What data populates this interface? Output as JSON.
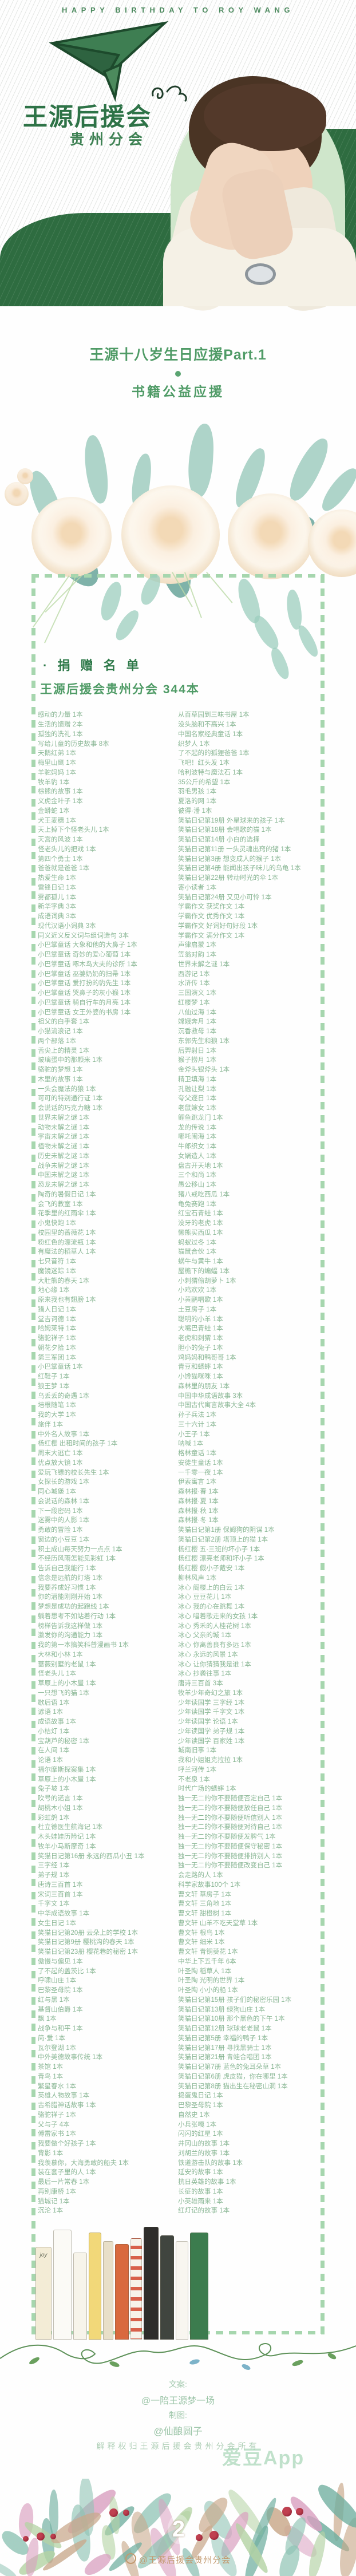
{
  "page": {
    "header": {
      "top_line": "HAPPY BIRTHDAY TO ROY WANG",
      "club_name": "王源后援会",
      "branch": "贵州分会"
    },
    "title_block": {
      "line1": "王源十八岁生日应援Part.1",
      "line2": "书籍公益应援"
    },
    "donation": {
      "section_title": "· 捐 赠 名 单",
      "section_subtitle": "王源后援会贵州分会 344本",
      "rows": [
        [
          "感动的力量 1本",
          "从百草园到三味书屋 1本"
        ],
        [
          "生活的馈赠 2本",
          "没头脑和不高兴 1本"
        ],
        [
          "孤独的洗礼 1本",
          "中国名家经典童话 1本"
        ],
        [
          "写给儿童的历史故事 8本",
          "织梦人 1本"
        ],
        [
          "天鹅红弟 1本",
          "了不起的的狐狸爸爸 1本"
        ],
        [
          "梅里山鹰 1本",
          "飞吧！红头发 1本"
        ],
        [
          "羊驼妈妈 1本",
          "哈利波特与魔法石 1本"
        ],
        [
          "牧羊豹 1本",
          "35公斤的希望 1本"
        ],
        [
          "棕熊的故事 1本",
          "羽毛男孩 1本"
        ],
        [
          "义虎金叶子 1本",
          "夏洛的网 1本"
        ],
        [
          "金蟒蛇 1本",
          "彼得·潘 1本"
        ],
        [
          "犬王麦穗 1本",
          "笑猫日记第19册 外星球来的孩子 1本"
        ],
        [
          "天上掉下个怪老头儿 1本",
          "笑猫日记第18册 会唱歌的猫 1本"
        ],
        [
          "天宫的风波 1本",
          "笑猫日记第14册 小白的选择"
        ],
        [
          "怪老头儿的把戏 1本",
          "笑猫日记第11册 一头灵魂出窍的猪 1本"
        ],
        [
          "第四个勇士 1本",
          "笑猫日记第3册 想变成人的猴子 1本"
        ],
        [
          "爸爸就是爸爸 1本",
          "笑猫日记第4册 能闻出孩子味儿的乌龟 1本"
        ],
        [
          "热爱生命 1本",
          "笑猫日记第22册 转动时光的伞 1本"
        ],
        [
          "雷锋日记 1本",
          "寄小读者 1本"
        ],
        [
          "雾都孤儿 1本",
          "笑猫日记第24册 又见小可怜 1本"
        ],
        [
          "新华字典 3本",
          "学霸作文 获奖作文 1本"
        ],
        [
          "成语词典 3本",
          "学霸作文 优秀作文 1本"
        ],
        [
          "现代汉语小词典 3本",
          "学霸作文 好词好句好段 1本"
        ],
        [
          "同义近义反义词与组词造句 3本",
          "学霸作文 满分作文 1本"
        ],
        [
          "小巴掌童话 大象和他的大鼻子 1本",
          "声律启蒙 1本"
        ],
        [
          "小巴掌童话 奇妙的爱心葡萄 1本",
          "笠翁对韵 1本"
        ],
        [
          "小巴掌童话 啄木鸟大夫的诊所 1本",
          "世界未解之谜 1本"
        ],
        [
          "小巴掌童话 巫婆奶奶的扫帚 1本",
          "西游记 1本"
        ],
        [
          "小巴掌童话 爱打扮的豹先生 1本",
          "水浒传 1本"
        ],
        [
          "小巴掌童话 哭鼻子的灰小猴 1本",
          "三国演义 1本"
        ],
        [
          "小巴掌童话 骑自行车的月亮 1本",
          "红楼梦 1本"
        ],
        [
          "小巴掌童话 女王外婆的书房 1本",
          "八仙过海 1本"
        ],
        [
          "祖父的白手套 1本",
          "嫦娥奔月 1本"
        ],
        [
          "小猫流浪记 1本",
          "沉香救母 1本"
        ],
        [
          "两个部落 1本",
          "东郭先生和狼 1本"
        ],
        [
          "舌尖上的精灵 1本",
          "后羿射日 1本"
        ],
        [
          "玻璃蛋中的那颗米 1本",
          "猴子捞月 1本"
        ],
        [
          "骆驼的梦想 1本",
          "金斧头银斧头 1本"
        ],
        [
          "木里的故事 1本",
          "精卫填海 1本"
        ],
        [
          "一头会魔法的狼 1本",
          "孔融让梨 1本"
        ],
        [
          "可可的特别通行证 1本",
          "夸父逐日 1本"
        ],
        [
          "会说话的巧克力糖 1本",
          "老鼠嫁女 1本"
        ],
        [
          "世界未解之谜 1本",
          "鲤鱼跳龙门 1本"
        ],
        [
          "动物未解之谜 1本",
          "龙的传说 1本"
        ],
        [
          "宇宙未解之谜 1本",
          "哪吒闹海 1本"
        ],
        [
          "植物未解之谜 1本",
          "牛郎织女 1本"
        ],
        [
          "历史未解之谜 1本",
          "女娲造人 1本"
        ],
        [
          "战争未解之谜 1本",
          "盘古开天地 1本"
        ],
        [
          "中国未解之谜 1本",
          "三个和尚 1本"
        ],
        [
          "恐龙未解之谜 1本",
          "愚公移山 1本"
        ],
        [
          "陶奇的暑假日记 1本",
          "猪八戒吃西瓜 1本"
        ],
        [
          "会飞的教室 1本",
          "龟兔赛跑 1本"
        ],
        [
          "花季里的红雨伞 1本",
          "红宝石青蛙 1本"
        ],
        [
          "小鬼快跑 1本",
          "没牙的老虎 1本"
        ],
        [
          "校园里的蔷薇花 1本",
          "懒熊买西瓜 1本"
        ],
        [
          "粉红色的漂流瓶 1本",
          "蚂蚁过冬 1本"
        ],
        [
          "有魔法的稻草人 1本",
          "猫鼠合伙 1本"
        ],
        [
          "七只音符 1本",
          "蜗牛与黄牛 1本"
        ],
        [
          "魔镜迷踪 1本",
          "屋檐下的蝙蝠 1本"
        ],
        [
          "大肚熊的春天 1本",
          "小刺猬偷胡萝卜 1本"
        ],
        [
          "地心缘 1本",
          "小鸡欢欢 1本"
        ],
        [
          "原来我也有翅膀 1本",
          "小黄鹂唱歌 1本"
        ],
        [
          "猎人日记 1本",
          "土豆房子 1本"
        ],
        [
          "堂吉诃德 1本",
          "聪明的小羊 1本"
        ],
        [
          "哈姆莱特 1本",
          "大嘴巴青蛙 1本"
        ],
        [
          "骆驼祥子 1本",
          "老虎和刺猬 1本"
        ],
        [
          "朝花夕拾 1本",
          "胆小的兔子 1本"
        ],
        [
          "第三军团 1本",
          "鸡妈妈和鸭哥哥 1本"
        ],
        [
          "小巴掌童话 1本",
          "青豆和蟋蟀 1本"
        ],
        [
          "红鞋子 1本",
          "小馋猫咪咪 1本"
        ],
        [
          "狼王梦 1本",
          "森林里的朋友 1本"
        ],
        [
          "乌丢丢的奇遇 1本",
          "中国中华成语故事 3本"
        ],
        [
          "培根随笔 1本",
          "中国古代寓言故事大全 4本"
        ],
        [
          "我的大学 1本",
          "孙子兵法 1本"
        ],
        [
          "旅伴 1本",
          "三十六计 1本"
        ],
        [
          "中外名人故事 1本",
          "小王子 1本"
        ],
        [
          "杨红樱 出租时间的孩子 1本",
          "呐喊 1本"
        ],
        [
          "周末大逃亡 1本",
          "格林童话 1本"
        ],
        [
          "优点放大镜 1本",
          "安徒生童话 1本"
        ],
        [
          "爱玩飞镖的校长先生 1本",
          "一千零一夜 1本"
        ],
        [
          "女探长的游戏 1本",
          "伊索寓言 1本"
        ],
        [
          "同心城堡 1本",
          "森林报·春 1本"
        ],
        [
          "会说话的森林 1本",
          "森林报·夏 1本"
        ],
        [
          "下一段密码 1本",
          "森林报·秋 1本"
        ],
        [
          "迷雾中的人影 1本",
          "森林报·冬 1本"
        ],
        [
          "勇敢的冒险 1本",
          "笑猫日记第1册 保姆狗的阴谋 1本"
        ],
        [
          "窗边的小豆豆 1本",
          "笑猫日记第2册 塔顶上的猫 1本"
        ],
        [
          "积土成山每天努力一点点 1本",
          "杨红樱 五·三班的坏小子 1本"
        ],
        [
          "不经历风雨怎能见彩虹 1本",
          "杨红樱 漂亮老师和坏小子 1本"
        ],
        [
          "告诉自己我能行 1本",
          "杨红樱 假小子戴安 1本"
        ],
        [
          "信念是远航的灯塔 1本",
          "柳林风声 1本"
        ],
        [
          "我要养成好习惯 1本",
          "冰心 阁楼上的白云 1本"
        ],
        [
          "你的潜能刚刚开始 1本",
          "冰心 豆豆花儿 1本"
        ],
        [
          "梦想是成功的起跑线 1本",
          "冰心 我的心在跳舞 1本"
        ],
        [
          "躺着思考不如站着行动 1本",
          "冰心 唱着歌走来的女孩 1本"
        ],
        [
          "榜样告诉我这样做 1本",
          "冰心 秀禾的人桂花树 1本"
        ],
        [
          "激发你的沟通能力 1本",
          "冰心 父亲的城 1本"
        ],
        [
          "我的第一本搞笑科普漫画书 1本",
          "冰心 你离善良有多远 1本"
        ],
        [
          "大林和小林 1本",
          "冰心 永远的风景 1本"
        ],
        [
          "蔷薇别墅的老鼠 1本",
          "冰心 让你猜猜我是谁 1本"
        ],
        [
          "怪老头儿 1本",
          "冰心 抄袭往事 1本"
        ],
        [
          "草原上的小木屋 1本",
          "唐诗三百首 3本"
        ],
        [
          "一只想飞的猫 1本",
          "牧羊少年奇幻之旅 1本"
        ],
        [
          "歇后语 1本",
          "少年读国学 三字经 1本"
        ],
        [
          "谚语 1本",
          "少年读国学 千字文 1本"
        ],
        [
          "成语故事 1本",
          "少年读国学 论语 1本"
        ],
        [
          "小桔灯 1本",
          "少年读国学 弟子规 1本"
        ],
        [
          "宝葫芦的秘密 1本",
          "少年读国学 百家姓 1本"
        ],
        [
          "在人间 1本",
          "城南旧事 1本"
        ],
        [
          "论语 1本",
          "我和小姐姐克拉拉 1本"
        ],
        [
          "福尔摩斯探案集 1本",
          "呼兰河传 1本"
        ],
        [
          "草原上的小木屋 1本",
          "不老泉 1本"
        ],
        [
          "兔子坡 1本",
          "时代广场的蟋蟀 1本"
        ],
        [
          "吹号的诺言 1本",
          "独一无二的你不要随便否定自己 1本"
        ],
        [
          "胡桃木小姐 1本",
          "独一无二的你不要随便放任自己 1本"
        ],
        [
          "彩虹鸽 1本",
          "独一无二的你不要随便听信别人 1本"
        ],
        [
          "杜立德医生航海记 1本",
          "独一无二的你不要随便对待自己 1本"
        ],
        [
          "木头娃娃历险记 1本",
          "独一无二的你不要随便发脾气 1本"
        ],
        [
          "牧羊小马斯摩奇 1本",
          "独一无二的你不要随便保守秘密 1本"
        ],
        [
          "笑猫日记第16册 永远的西瓜小丑 1本",
          "独一无二的你不要随便排挤别人 1本"
        ],
        [
          "三字经 1本",
          "独一无二的你不要随便改变自己 1本"
        ],
        [
          "弟子规 1本",
          "会走路的人 1本"
        ],
        [
          "唐诗三百首 1本",
          "科学家故事100个 1本"
        ],
        [
          "宋词三百首 1本",
          "曹文轩 草房子 1本"
        ],
        [
          "千字文 1本",
          "曹文轩 三角地 1本"
        ],
        [
          "中华成语故事 1本",
          "曹文轩 甜橙树 1本"
        ],
        [
          "女生日记 1本",
          "曹文轩 山羊不吃天堂草 1本"
        ],
        [
          "笑猫日记第20册 云朵上的学校 1本",
          "曹文轩 根鸟 1本"
        ],
        [
          "笑猫日记第9册 樱桃沟的春天 1本",
          "曹文轩 细米 1本"
        ],
        [
          "笑猫日记第23册 樱花巷的秘密 1本",
          "曹文轩 青铜葵花 1本"
        ],
        [
          "傲慢与偏见 1本",
          "中华上下五千年 6本"
        ],
        [
          "了不起的盖茨比 1本",
          "叶圣陶 稻草人 1本"
        ],
        [
          "呼啸山庄 1本",
          "叶圣陶 光明的世界 1本"
        ],
        [
          "巴黎圣母院 1本",
          "叶圣陶 小小的船 1本"
        ],
        [
          "红与黑 1本",
          "笑猫日记第15册 孩子们的秘密乐园 1本"
        ],
        [
          "基督山伯爵 1本",
          "笑猫日记第13册 绿狗山庄 1本"
        ],
        [
          "飘 1本",
          "笑猫日记第10册 那个黑色的下午 1本"
        ],
        [
          "战争与和平 1本",
          "笑猫日记第12册 球球老老鼠 1本"
        ],
        [
          "简·爱 1本",
          "笑猫日记第5册 幸福的鸭子 1本"
        ],
        [
          "瓦尔登湖 1本",
          "笑猫日记第17册 寻找黑骑士 1本"
        ],
        [
          "中外美德故事传统 1本",
          "笑猫日记第21册 青蛙合唱团 1本"
        ],
        [
          "茶馆 1本",
          "笑猫日记第7册 蓝色的兔耳朵草 1本"
        ],
        [
          "青鸟 1本",
          "笑猫日记第6册 虎皮猫，你在哪里 1本"
        ],
        [
          "繁星春水 1本",
          "笑猫日记第8册 猫出生在秘密山洞 1本"
        ],
        [
          "英雄人物故事 1本",
          "捣蛋鬼日记 1本"
        ],
        [
          "古希腊神话故事 1本",
          "巴黎圣母院 1本"
        ],
        [
          "骆驼祥子 1本",
          "自然史 1本"
        ],
        [
          "父与子 4本",
          "小兵张嘎 1本"
        ],
        [
          "傅雷家书 1本",
          "闪闪的红星 1本"
        ],
        [
          "我要做个好孩子 1本",
          "井冈山的故事 1本"
        ],
        [
          "背影 1本",
          "刘胡兰的故事 1本"
        ],
        [
          "我羡慕你，大海勇敢的船夫 1本",
          "铁道游击队的故事 1本"
        ],
        [
          "装在套子里的人 1本",
          "延安的故事 1本"
        ],
        [
          "最后一片常春 1本",
          "抗日英雄的故事 1本"
        ],
        [
          "再别康桥 1本",
          "长征的故事 1本"
        ],
        [
          "猫城记 1本",
          "小英雄雨来 1本"
        ],
        [
          "沉沦 1本",
          "红灯记的故事 1本"
        ]
      ]
    },
    "shelf": {
      "book_label": "joy"
    },
    "credits": {
      "copy_label": "文案:",
      "copy_author": "@一陪王源梦一场",
      "design_label": "制图:",
      "design_author": "@仙酿圆子",
      "rights": "解释权归王源后援会贵州分会所有"
    },
    "watermarks": {
      "idol_app": "爱豆App",
      "page_glyph": "2",
      "bottom": "@王源后援会贵州分会"
    },
    "colors": {
      "dark_green": "#2e6c40",
      "title_green": "#2f7a4a",
      "list_green": "#8ab795",
      "dash_green": "#a6d6ae"
    }
  }
}
